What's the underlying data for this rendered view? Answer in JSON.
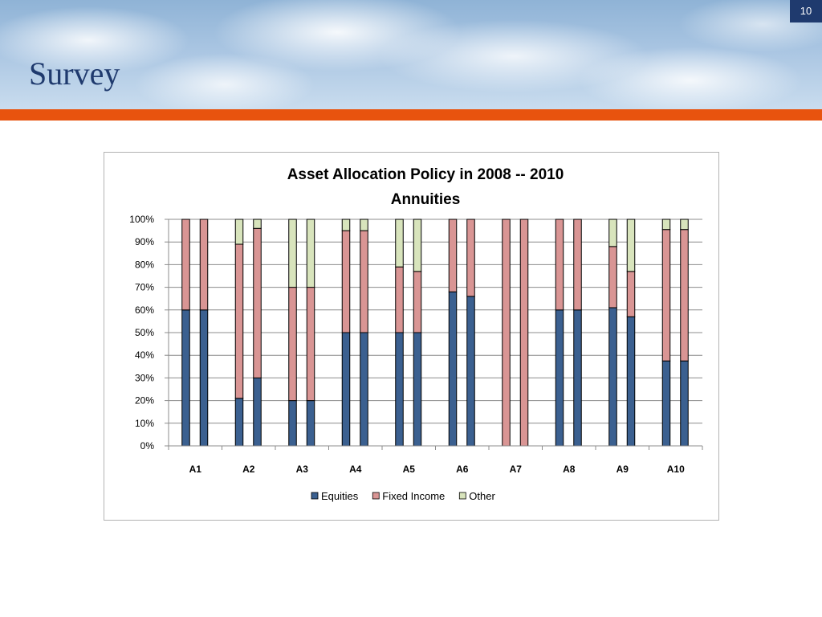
{
  "slide": {
    "title": "Survey",
    "page_number": "10"
  },
  "chart_data": {
    "type": "bar",
    "stacked": true,
    "title_line1": "Asset Allocation Policy in 2008 -- 2010",
    "title_line2": "Annuities",
    "categories": [
      "A1",
      "A2",
      "A3",
      "A4",
      "A5",
      "A6",
      "A7",
      "A8",
      "A9",
      "A10"
    ],
    "bars_per_category": [
      "2008",
      "2010"
    ],
    "y_ticks": [
      "0%",
      "10%",
      "20%",
      "30%",
      "40%",
      "50%",
      "60%",
      "70%",
      "80%",
      "90%",
      "100%"
    ],
    "ylim": [
      0,
      100
    ],
    "grid": true,
    "legend_position": "bottom",
    "series": [
      {
        "name": "Equities",
        "color": "#3b6090",
        "values": [
          [
            60,
            60
          ],
          [
            21,
            30
          ],
          [
            20,
            20
          ],
          [
            50,
            50
          ],
          [
            50,
            50
          ],
          [
            68,
            66
          ],
          [
            0,
            0
          ],
          [
            60,
            60
          ],
          [
            61,
            57
          ],
          [
            37.5,
            37.5
          ]
        ]
      },
      {
        "name": "Fixed Income",
        "color": "#d99594",
        "values": [
          [
            40,
            40
          ],
          [
            68,
            66
          ],
          [
            50,
            50
          ],
          [
            45,
            45
          ],
          [
            29,
            27
          ],
          [
            32,
            34
          ],
          [
            100,
            100
          ],
          [
            40,
            40
          ],
          [
            27,
            20
          ],
          [
            58,
            58
          ]
        ]
      },
      {
        "name": "Other",
        "color": "#d8e4bc",
        "values": [
          [
            0,
            0
          ],
          [
            11,
            4
          ],
          [
            30,
            30
          ],
          [
            5,
            5
          ],
          [
            21,
            23
          ],
          [
            0,
            0
          ],
          [
            0,
            0
          ],
          [
            0,
            0
          ],
          [
            12,
            23
          ],
          [
            4.5,
            4.5
          ]
        ]
      }
    ]
  }
}
